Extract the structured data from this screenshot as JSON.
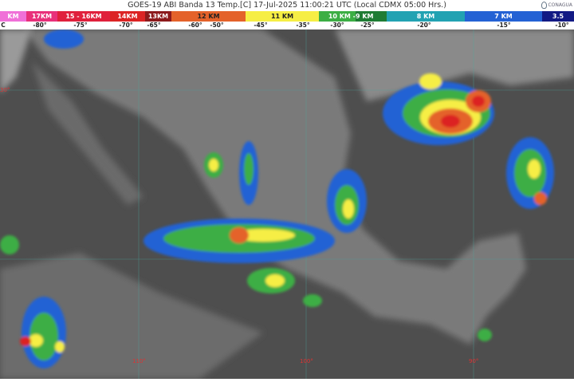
{
  "header": {
    "title": "GOES-19 ABI Banda 13 Temp.[C] 17-Jul-2025 11:00:21 UTC (Local CDMX  05:00 Hrs.)",
    "logo_text": "CONAGUA"
  },
  "legend": {
    "segments": [
      {
        "label": "KM",
        "color": "#f070d8"
      },
      {
        "label": "17KM",
        "color": "#e8307a"
      },
      {
        "label": "15 - 16KM",
        "color": "#e0203c"
      },
      {
        "label": "14KM",
        "color": "#dc2424"
      },
      {
        "label": "13KM",
        "color": "#8c1a1c"
      },
      {
        "label": "12 KM",
        "color": "#e4622a"
      },
      {
        "label": "11 KM",
        "color": "#f6ee44"
      },
      {
        "label": "10 KM - ",
        "color": "#3cae44"
      },
      {
        "label": "9 KM",
        "color": "#1f7c34"
      },
      {
        "label": "8 KM",
        "color": "#22a2b2"
      },
      {
        "label": "7 KM",
        "color": "#2462d4"
      },
      {
        "label": "3.5",
        "color": "#121a84"
      }
    ],
    "temperatures": [
      "C",
      "-80°",
      "-75°",
      "-70°",
      "-65°",
      "-60°",
      "-50°",
      "-45°",
      "-35°",
      "-30°",
      "-25°",
      "-20°",
      "-15°",
      "-10°"
    ]
  },
  "map": {
    "latitude_labels": [
      "30°"
    ],
    "longitude_labels": [
      "110°",
      "100°",
      "90°"
    ]
  }
}
